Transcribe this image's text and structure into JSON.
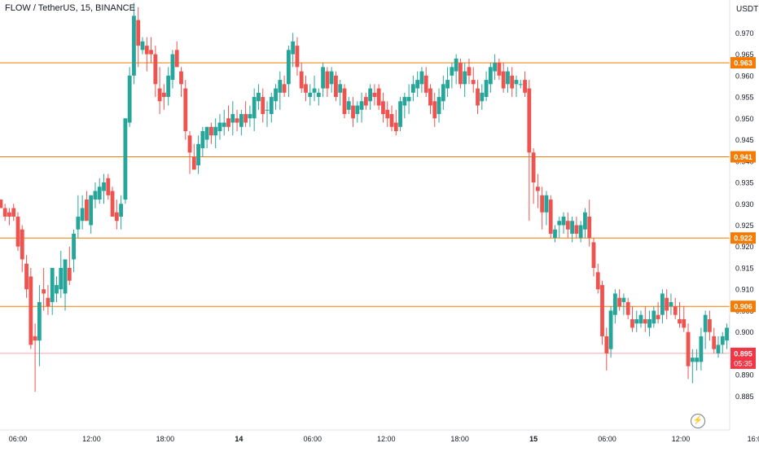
{
  "header": {
    "title": "FLOW / TetherUS, 15, BINANCE",
    "currency": "USDT"
  },
  "colors": {
    "up": "#26a69a",
    "down": "#ef5350",
    "level": "#f57c00",
    "last": "#f23645",
    "axis_text": "#131722"
  },
  "chart_data": {
    "type": "candlestick",
    "symbol": "FLOW / TetherUS",
    "interval": "15",
    "exchange": "BINANCE",
    "ylim": [
      0.882,
      0.977
    ],
    "y_ticks": [
      "0.970",
      "0.965",
      "0.960",
      "0.955",
      "0.950",
      "0.945",
      "0.940",
      "0.935",
      "0.930",
      "0.925",
      "0.920",
      "0.915",
      "0.910",
      "0.905",
      "0.900",
      "0.895",
      "0.890",
      "0.885"
    ],
    "x_ticks": [
      {
        "label": "06:00",
        "t": 0.0
      },
      {
        "label": "12:00",
        "t": 24.0
      },
      {
        "label": "18:00",
        "t": 48.0
      },
      {
        "label": "14",
        "t": 72.0,
        "bold": true
      },
      {
        "label": "06:00",
        "t": 96.0
      },
      {
        "label": "12:00",
        "t": 120.0
      },
      {
        "label": "18:00",
        "t": 144.0
      },
      {
        "label": "15",
        "t": 168.0,
        "bold": true
      },
      {
        "label": "06:00",
        "t": 192.0
      },
      {
        "label": "12:00",
        "t": 216.0
      },
      {
        "label": "16:0",
        "t": 240.0
      }
    ],
    "x_range": [
      -4.5,
      235.4
    ],
    "horizontal_levels": [
      {
        "label": "0.963",
        "value": 0.963
      },
      {
        "label": "0.941",
        "value": 0.941
      },
      {
        "label": "0.922",
        "value": 0.922
      },
      {
        "label": "0.906",
        "value": 0.906
      }
    ],
    "last_price": {
      "label": "0.895",
      "value": 0.895,
      "countdown": "05:35"
    },
    "candles": [
      [
        -4,
        0.931,
        0.931,
        0.929,
        0.929
      ],
      [
        -3,
        0.929,
        0.93,
        0.926,
        0.927
      ],
      [
        -2,
        0.928,
        0.929,
        0.925,
        0.927
      ],
      [
        -1,
        0.929,
        0.93,
        0.926,
        0.927
      ],
      [
        0,
        0.927,
        0.928,
        0.919,
        0.92
      ],
      [
        1,
        0.924,
        0.925,
        0.914,
        0.917
      ],
      [
        2,
        0.916,
        0.918,
        0.908,
        0.91
      ],
      [
        3,
        0.913,
        0.915,
        0.896,
        0.897
      ],
      [
        4,
        0.899,
        0.902,
        0.886,
        0.898
      ],
      [
        5,
        0.898,
        0.911,
        0.892,
        0.907
      ],
      [
        6,
        0.91,
        0.915,
        0.905,
        0.909
      ],
      [
        7,
        0.908,
        0.911,
        0.904,
        0.906
      ],
      [
        8,
        0.907,
        0.915,
        0.904,
        0.915
      ],
      [
        9,
        0.909,
        0.913,
        0.907,
        0.911
      ],
      [
        10,
        0.91,
        0.919,
        0.908,
        0.915
      ],
      [
        11,
        0.909,
        0.917,
        0.905,
        0.917
      ],
      [
        12,
        0.915,
        0.92,
        0.911,
        0.912
      ],
      [
        13,
        0.917,
        0.924,
        0.914,
        0.923
      ],
      [
        14,
        0.924,
        0.932,
        0.922,
        0.927
      ],
      [
        15,
        0.926,
        0.932,
        0.924,
        0.929
      ],
      [
        16,
        0.931,
        0.933,
        0.926,
        0.926
      ],
      [
        17,
        0.925,
        0.932,
        0.923,
        0.932
      ],
      [
        18,
        0.931,
        0.935,
        0.929,
        0.933
      ],
      [
        19,
        0.931,
        0.936,
        0.93,
        0.934
      ],
      [
        20,
        0.933,
        0.937,
        0.93,
        0.935
      ],
      [
        21,
        0.936,
        0.937,
        0.931,
        0.932
      ],
      [
        22,
        0.933,
        0.934,
        0.927,
        0.927
      ],
      [
        23,
        0.928,
        0.931,
        0.924,
        0.926
      ],
      [
        24,
        0.927,
        0.932,
        0.924,
        0.93
      ],
      [
        25,
        0.931,
        0.95,
        0.93,
        0.95
      ],
      [
        26,
        0.949,
        0.962,
        0.948,
        0.96
      ],
      [
        27,
        0.96,
        0.977,
        0.958,
        0.974
      ],
      [
        28,
        0.973,
        0.976,
        0.962,
        0.967
      ],
      [
        29,
        0.966,
        0.969,
        0.965,
        0.968
      ],
      [
        30,
        0.967,
        0.969,
        0.961,
        0.965
      ],
      [
        31,
        0.966,
        0.969,
        0.963,
        0.965
      ],
      [
        32,
        0.965,
        0.967,
        0.955,
        0.958
      ],
      [
        33,
        0.957,
        0.962,
        0.951,
        0.954
      ],
      [
        34,
        0.956,
        0.958,
        0.952,
        0.955
      ],
      [
        35,
        0.955,
        0.962,
        0.953,
        0.96
      ],
      [
        36,
        0.959,
        0.966,
        0.957,
        0.965
      ],
      [
        37,
        0.966,
        0.968,
        0.962,
        0.962
      ],
      [
        38,
        0.961,
        0.962,
        0.955,
        0.958
      ],
      [
        39,
        0.957,
        0.959,
        0.945,
        0.947
      ],
      [
        40,
        0.946,
        0.947,
        0.937,
        0.942
      ],
      [
        41,
        0.941,
        0.944,
        0.938,
        0.938
      ],
      [
        42,
        0.939,
        0.946,
        0.937,
        0.944
      ],
      [
        43,
        0.943,
        0.948,
        0.941,
        0.947
      ],
      [
        44,
        0.945,
        0.948,
        0.943,
        0.948
      ],
      [
        45,
        0.948,
        0.949,
        0.944,
        0.946
      ],
      [
        46,
        0.946,
        0.95,
        0.943,
        0.948
      ],
      [
        47,
        0.947,
        0.951,
        0.945,
        0.949
      ],
      [
        48,
        0.948,
        0.952,
        0.946,
        0.949
      ],
      [
        49,
        0.95,
        0.953,
        0.947,
        0.948
      ],
      [
        50,
        0.949,
        0.954,
        0.946,
        0.951
      ],
      [
        51,
        0.95,
        0.952,
        0.947,
        0.949
      ],
      [
        52,
        0.948,
        0.952,
        0.946,
        0.951
      ],
      [
        53,
        0.951,
        0.954,
        0.948,
        0.949
      ],
      [
        54,
        0.95,
        0.953,
        0.948,
        0.951
      ],
      [
        55,
        0.95,
        0.957,
        0.947,
        0.955
      ],
      [
        56,
        0.954,
        0.958,
        0.952,
        0.956
      ],
      [
        57,
        0.955,
        0.957,
        0.949,
        0.951
      ],
      [
        58,
        0.952,
        0.954,
        0.948,
        0.952
      ],
      [
        59,
        0.951,
        0.956,
        0.949,
        0.955
      ],
      [
        60,
        0.954,
        0.958,
        0.952,
        0.957
      ],
      [
        61,
        0.956,
        0.961,
        0.952,
        0.959
      ],
      [
        62,
        0.958,
        0.96,
        0.955,
        0.956
      ],
      [
        63,
        0.958,
        0.967,
        0.955,
        0.966
      ],
      [
        64,
        0.965,
        0.97,
        0.962,
        0.968
      ],
      [
        65,
        0.967,
        0.969,
        0.96,
        0.962
      ],
      [
        66,
        0.961,
        0.963,
        0.956,
        0.957
      ],
      [
        67,
        0.958,
        0.96,
        0.954,
        0.956
      ],
      [
        68,
        0.955,
        0.958,
        0.953,
        0.956
      ],
      [
        69,
        0.956,
        0.96,
        0.954,
        0.957
      ],
      [
        70,
        0.955,
        0.957,
        0.953,
        0.956
      ],
      [
        71,
        0.957,
        0.963,
        0.955,
        0.962
      ],
      [
        72,
        0.961,
        0.962,
        0.955,
        0.957
      ],
      [
        73,
        0.958,
        0.962,
        0.956,
        0.961
      ],
      [
        74,
        0.96,
        0.961,
        0.954,
        0.955
      ],
      [
        75,
        0.956,
        0.959,
        0.953,
        0.958
      ],
      [
        76,
        0.957,
        0.958,
        0.95,
        0.951
      ],
      [
        77,
        0.952,
        0.955,
        0.951,
        0.954
      ],
      [
        78,
        0.953,
        0.955,
        0.948,
        0.95
      ],
      [
        79,
        0.951,
        0.954,
        0.949,
        0.953
      ],
      [
        80,
        0.952,
        0.956,
        0.949,
        0.954
      ],
      [
        81,
        0.955,
        0.956,
        0.952,
        0.953
      ],
      [
        82,
        0.954,
        0.958,
        0.952,
        0.957
      ],
      [
        83,
        0.956,
        0.958,
        0.953,
        0.955
      ],
      [
        84,
        0.957,
        0.958,
        0.952,
        0.953
      ],
      [
        85,
        0.954,
        0.956,
        0.949,
        0.951
      ],
      [
        86,
        0.952,
        0.954,
        0.948,
        0.95
      ],
      [
        87,
        0.951,
        0.953,
        0.947,
        0.948
      ],
      [
        88,
        0.949,
        0.952,
        0.946,
        0.947
      ],
      [
        89,
        0.948,
        0.955,
        0.947,
        0.954
      ],
      [
        90,
        0.953,
        0.956,
        0.95,
        0.955
      ],
      [
        91,
        0.954,
        0.958,
        0.951,
        0.955
      ],
      [
        92,
        0.956,
        0.96,
        0.954,
        0.958
      ],
      [
        93,
        0.957,
        0.961,
        0.955,
        0.959
      ],
      [
        94,
        0.958,
        0.962,
        0.956,
        0.961
      ],
      [
        95,
        0.96,
        0.962,
        0.955,
        0.956
      ],
      [
        96,
        0.957,
        0.958,
        0.951,
        0.953
      ],
      [
        97,
        0.954,
        0.956,
        0.948,
        0.95
      ],
      [
        98,
        0.951,
        0.957,
        0.949,
        0.955
      ],
      [
        99,
        0.954,
        0.96,
        0.952,
        0.958
      ],
      [
        100,
        0.957,
        0.962,
        0.955,
        0.959
      ],
      [
        101,
        0.96,
        0.963,
        0.957,
        0.962
      ],
      [
        102,
        0.961,
        0.965,
        0.958,
        0.964
      ],
      [
        103,
        0.963,
        0.964,
        0.957,
        0.958
      ],
      [
        104,
        0.958,
        0.963,
        0.955,
        0.961
      ],
      [
        105,
        0.962,
        0.964,
        0.958,
        0.96
      ],
      [
        106,
        0.959,
        0.962,
        0.956,
        0.958
      ],
      [
        107,
        0.957,
        0.959,
        0.951,
        0.953
      ],
      [
        108,
        0.954,
        0.958,
        0.952,
        0.956
      ],
      [
        109,
        0.955,
        0.961,
        0.954,
        0.959
      ],
      [
        110,
        0.958,
        0.963,
        0.956,
        0.962
      ],
      [
        111,
        0.961,
        0.965,
        0.959,
        0.963
      ],
      [
        112,
        0.963,
        0.964,
        0.959,
        0.96
      ],
      [
        113,
        0.961,
        0.963,
        0.956,
        0.957
      ],
      [
        114,
        0.958,
        0.962,
        0.956,
        0.961
      ],
      [
        115,
        0.96,
        0.962,
        0.955,
        0.957
      ],
      [
        116,
        0.958,
        0.96,
        0.955,
        0.959
      ],
      [
        117,
        0.958,
        0.959,
        0.957,
        0.958
      ],
      [
        118,
        0.959,
        0.961,
        0.955,
        0.956
      ],
      [
        119,
        0.957,
        0.959,
        0.926,
        0.942
      ],
      [
        120,
        0.942,
        0.943,
        0.93,
        0.935
      ],
      [
        121,
        0.934,
        0.937,
        0.929,
        0.933
      ],
      [
        122,
        0.932,
        0.934,
        0.924,
        0.928
      ],
      [
        123,
        0.928,
        0.933,
        0.925,
        0.932
      ],
      [
        124,
        0.931,
        0.932,
        0.922,
        0.923
      ],
      [
        125,
        0.922,
        0.925,
        0.921,
        0.924
      ],
      [
        126,
        0.925,
        0.927,
        0.922,
        0.926
      ],
      [
        127,
        0.925,
        0.928,
        0.923,
        0.927
      ],
      [
        128,
        0.926,
        0.928,
        0.922,
        0.924
      ],
      [
        129,
        0.923,
        0.927,
        0.921,
        0.926
      ],
      [
        130,
        0.925,
        0.927,
        0.922,
        0.923
      ],
      [
        131,
        0.922,
        0.926,
        0.921,
        0.925
      ],
      [
        132,
        0.924,
        0.929,
        0.922,
        0.928
      ],
      [
        133,
        0.927,
        0.931,
        0.92,
        0.922
      ],
      [
        134,
        0.921,
        0.922,
        0.913,
        0.915
      ],
      [
        135,
        0.914,
        0.916,
        0.909,
        0.91
      ],
      [
        136,
        0.911,
        0.912,
        0.897,
        0.899
      ],
      [
        137,
        0.899,
        0.901,
        0.891,
        0.895
      ],
      [
        138,
        0.896,
        0.906,
        0.894,
        0.905
      ],
      [
        139,
        0.904,
        0.91,
        0.902,
        0.909
      ],
      [
        140,
        0.908,
        0.91,
        0.905,
        0.906
      ],
      [
        141,
        0.907,
        0.909,
        0.904,
        0.908
      ],
      [
        142,
        0.907,
        0.908,
        0.903,
        0.904
      ],
      [
        143,
        0.903,
        0.906,
        0.9,
        0.901
      ],
      [
        144,
        0.902,
        0.905,
        0.9,
        0.903
      ],
      [
        145,
        0.902,
        0.905,
        0.901,
        0.904
      ],
      [
        146,
        0.903,
        0.906,
        0.9,
        0.902
      ],
      [
        147,
        0.901,
        0.905,
        0.899,
        0.903
      ],
      [
        148,
        0.902,
        0.906,
        0.901,
        0.905
      ],
      [
        149,
        0.904,
        0.907,
        0.902,
        0.903
      ],
      [
        150,
        0.904,
        0.91,
        0.902,
        0.909
      ],
      [
        151,
        0.908,
        0.91,
        0.903,
        0.905
      ],
      [
        152,
        0.906,
        0.909,
        0.904,
        0.907
      ],
      [
        153,
        0.906,
        0.908,
        0.903,
        0.904
      ],
      [
        154,
        0.903,
        0.907,
        0.901,
        0.902
      ],
      [
        155,
        0.903,
        0.906,
        0.9,
        0.901
      ],
      [
        156,
        0.9,
        0.902,
        0.889,
        0.892
      ],
      [
        157,
        0.893,
        0.896,
        0.888,
        0.894
      ],
      [
        158,
        0.893,
        0.896,
        0.891,
        0.894
      ],
      [
        159,
        0.893,
        0.901,
        0.891,
        0.899
      ],
      [
        160,
        0.9,
        0.905,
        0.896,
        0.904
      ],
      [
        161,
        0.903,
        0.905,
        0.898,
        0.9
      ],
      [
        162,
        0.899,
        0.901,
        0.895,
        0.896
      ],
      [
        163,
        0.895,
        0.899,
        0.894,
        0.897
      ],
      [
        164,
        0.897,
        0.9,
        0.895,
        0.899
      ],
      [
        165,
        0.898,
        0.902,
        0.896,
        0.901
      ],
      [
        166,
        0.9,
        0.905,
        0.898,
        0.904
      ],
      [
        167,
        0.903,
        0.905,
        0.9,
        0.902
      ],
      [
        168,
        0.903,
        0.904,
        0.9,
        0.901
      ],
      [
        169,
        0.9,
        0.902,
        0.896,
        0.898
      ],
      [
        170,
        0.899,
        0.903,
        0.893,
        0.895
      ]
    ],
    "candle_t_scale": 1.4
  }
}
